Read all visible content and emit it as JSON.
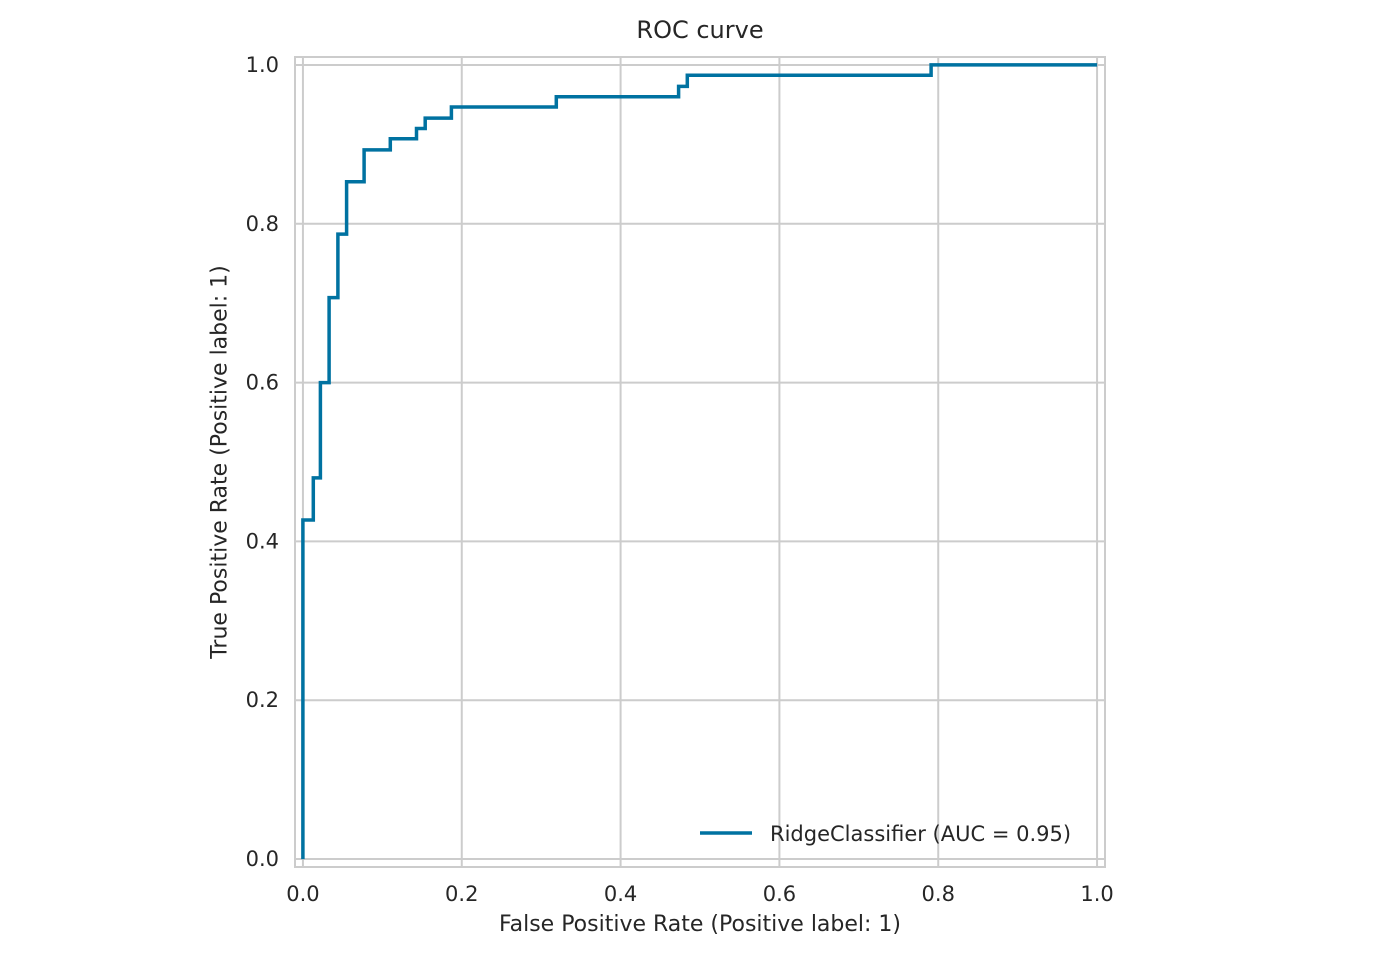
{
  "chart_data": {
    "type": "line",
    "title": "ROC curve",
    "xlabel": "False Positive Rate (Positive label: 1)",
    "ylabel": "True Positive Rate (Positive label: 1)",
    "xlim": [
      -0.01,
      1.01
    ],
    "ylim": [
      -0.01,
      1.01
    ],
    "xticks": [
      "0.0",
      "0.2",
      "0.4",
      "0.6",
      "0.8",
      "1.0"
    ],
    "yticks": [
      "0.0",
      "0.2",
      "0.4",
      "0.6",
      "0.8",
      "1.0"
    ],
    "grid": true,
    "legend_position": "bottom-right",
    "colors": {
      "series": "#0072a1",
      "grid": "#cccccc",
      "text": "#262626"
    },
    "series": [
      {
        "name": "RidgeClassifier (AUC = 0.95)",
        "points": [
          [
            0.0,
            0.0
          ],
          [
            0.0,
            0.427
          ],
          [
            0.013,
            0.427
          ],
          [
            0.013,
            0.48
          ],
          [
            0.022,
            0.48
          ],
          [
            0.022,
            0.6
          ],
          [
            0.033,
            0.6
          ],
          [
            0.033,
            0.707
          ],
          [
            0.044,
            0.707
          ],
          [
            0.044,
            0.787
          ],
          [
            0.055,
            0.787
          ],
          [
            0.055,
            0.853
          ],
          [
            0.077,
            0.853
          ],
          [
            0.077,
            0.893
          ],
          [
            0.11,
            0.893
          ],
          [
            0.11,
            0.907
          ],
          [
            0.143,
            0.907
          ],
          [
            0.143,
            0.92
          ],
          [
            0.154,
            0.92
          ],
          [
            0.154,
            0.933
          ],
          [
            0.187,
            0.933
          ],
          [
            0.187,
            0.947
          ],
          [
            0.319,
            0.947
          ],
          [
            0.319,
            0.96
          ],
          [
            0.473,
            0.96
          ],
          [
            0.473,
            0.973
          ],
          [
            0.484,
            0.973
          ],
          [
            0.484,
            0.987
          ],
          [
            0.791,
            0.987
          ],
          [
            0.791,
            1.0
          ],
          [
            1.0,
            1.0
          ]
        ]
      }
    ]
  }
}
